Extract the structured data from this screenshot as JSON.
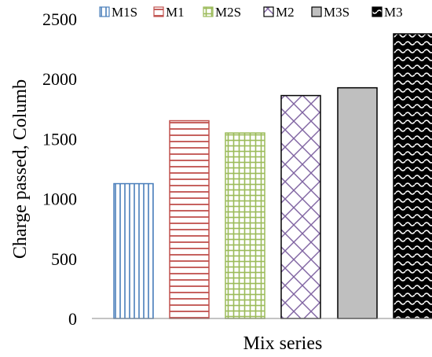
{
  "chart_data": {
    "type": "bar",
    "categories": [
      "M1S",
      "M1",
      "M2S",
      "M2",
      "M3S",
      "M3"
    ],
    "series": [
      {
        "values": [
          1125,
          1650,
          1548,
          1860,
          1925,
          2375
        ]
      }
    ],
    "legend": [
      {
        "label": "M1S",
        "pattern": "vertical-lines",
        "color": "#4a7ebb"
      },
      {
        "label": "M1",
        "pattern": "horizontal-lines",
        "color": "#c0504d"
      },
      {
        "label": "M2S",
        "pattern": "grid",
        "color": "#9bbb59"
      },
      {
        "label": "M2",
        "pattern": "diagonal-cross",
        "color": "#8064a2"
      },
      {
        "label": "M3S",
        "pattern": "solid",
        "color": "#bfbfbf"
      },
      {
        "label": "M3",
        "pattern": "wave",
        "color": "#000000"
      }
    ],
    "legend_position": "top",
    "xlabel": "Mix series",
    "ylabel": "Charge passed, Columb",
    "ylim": [
      0,
      2500
    ],
    "yticks": [
      "0",
      "500",
      "1000",
      "1500",
      "2000",
      "2500"
    ],
    "grid": false
  }
}
